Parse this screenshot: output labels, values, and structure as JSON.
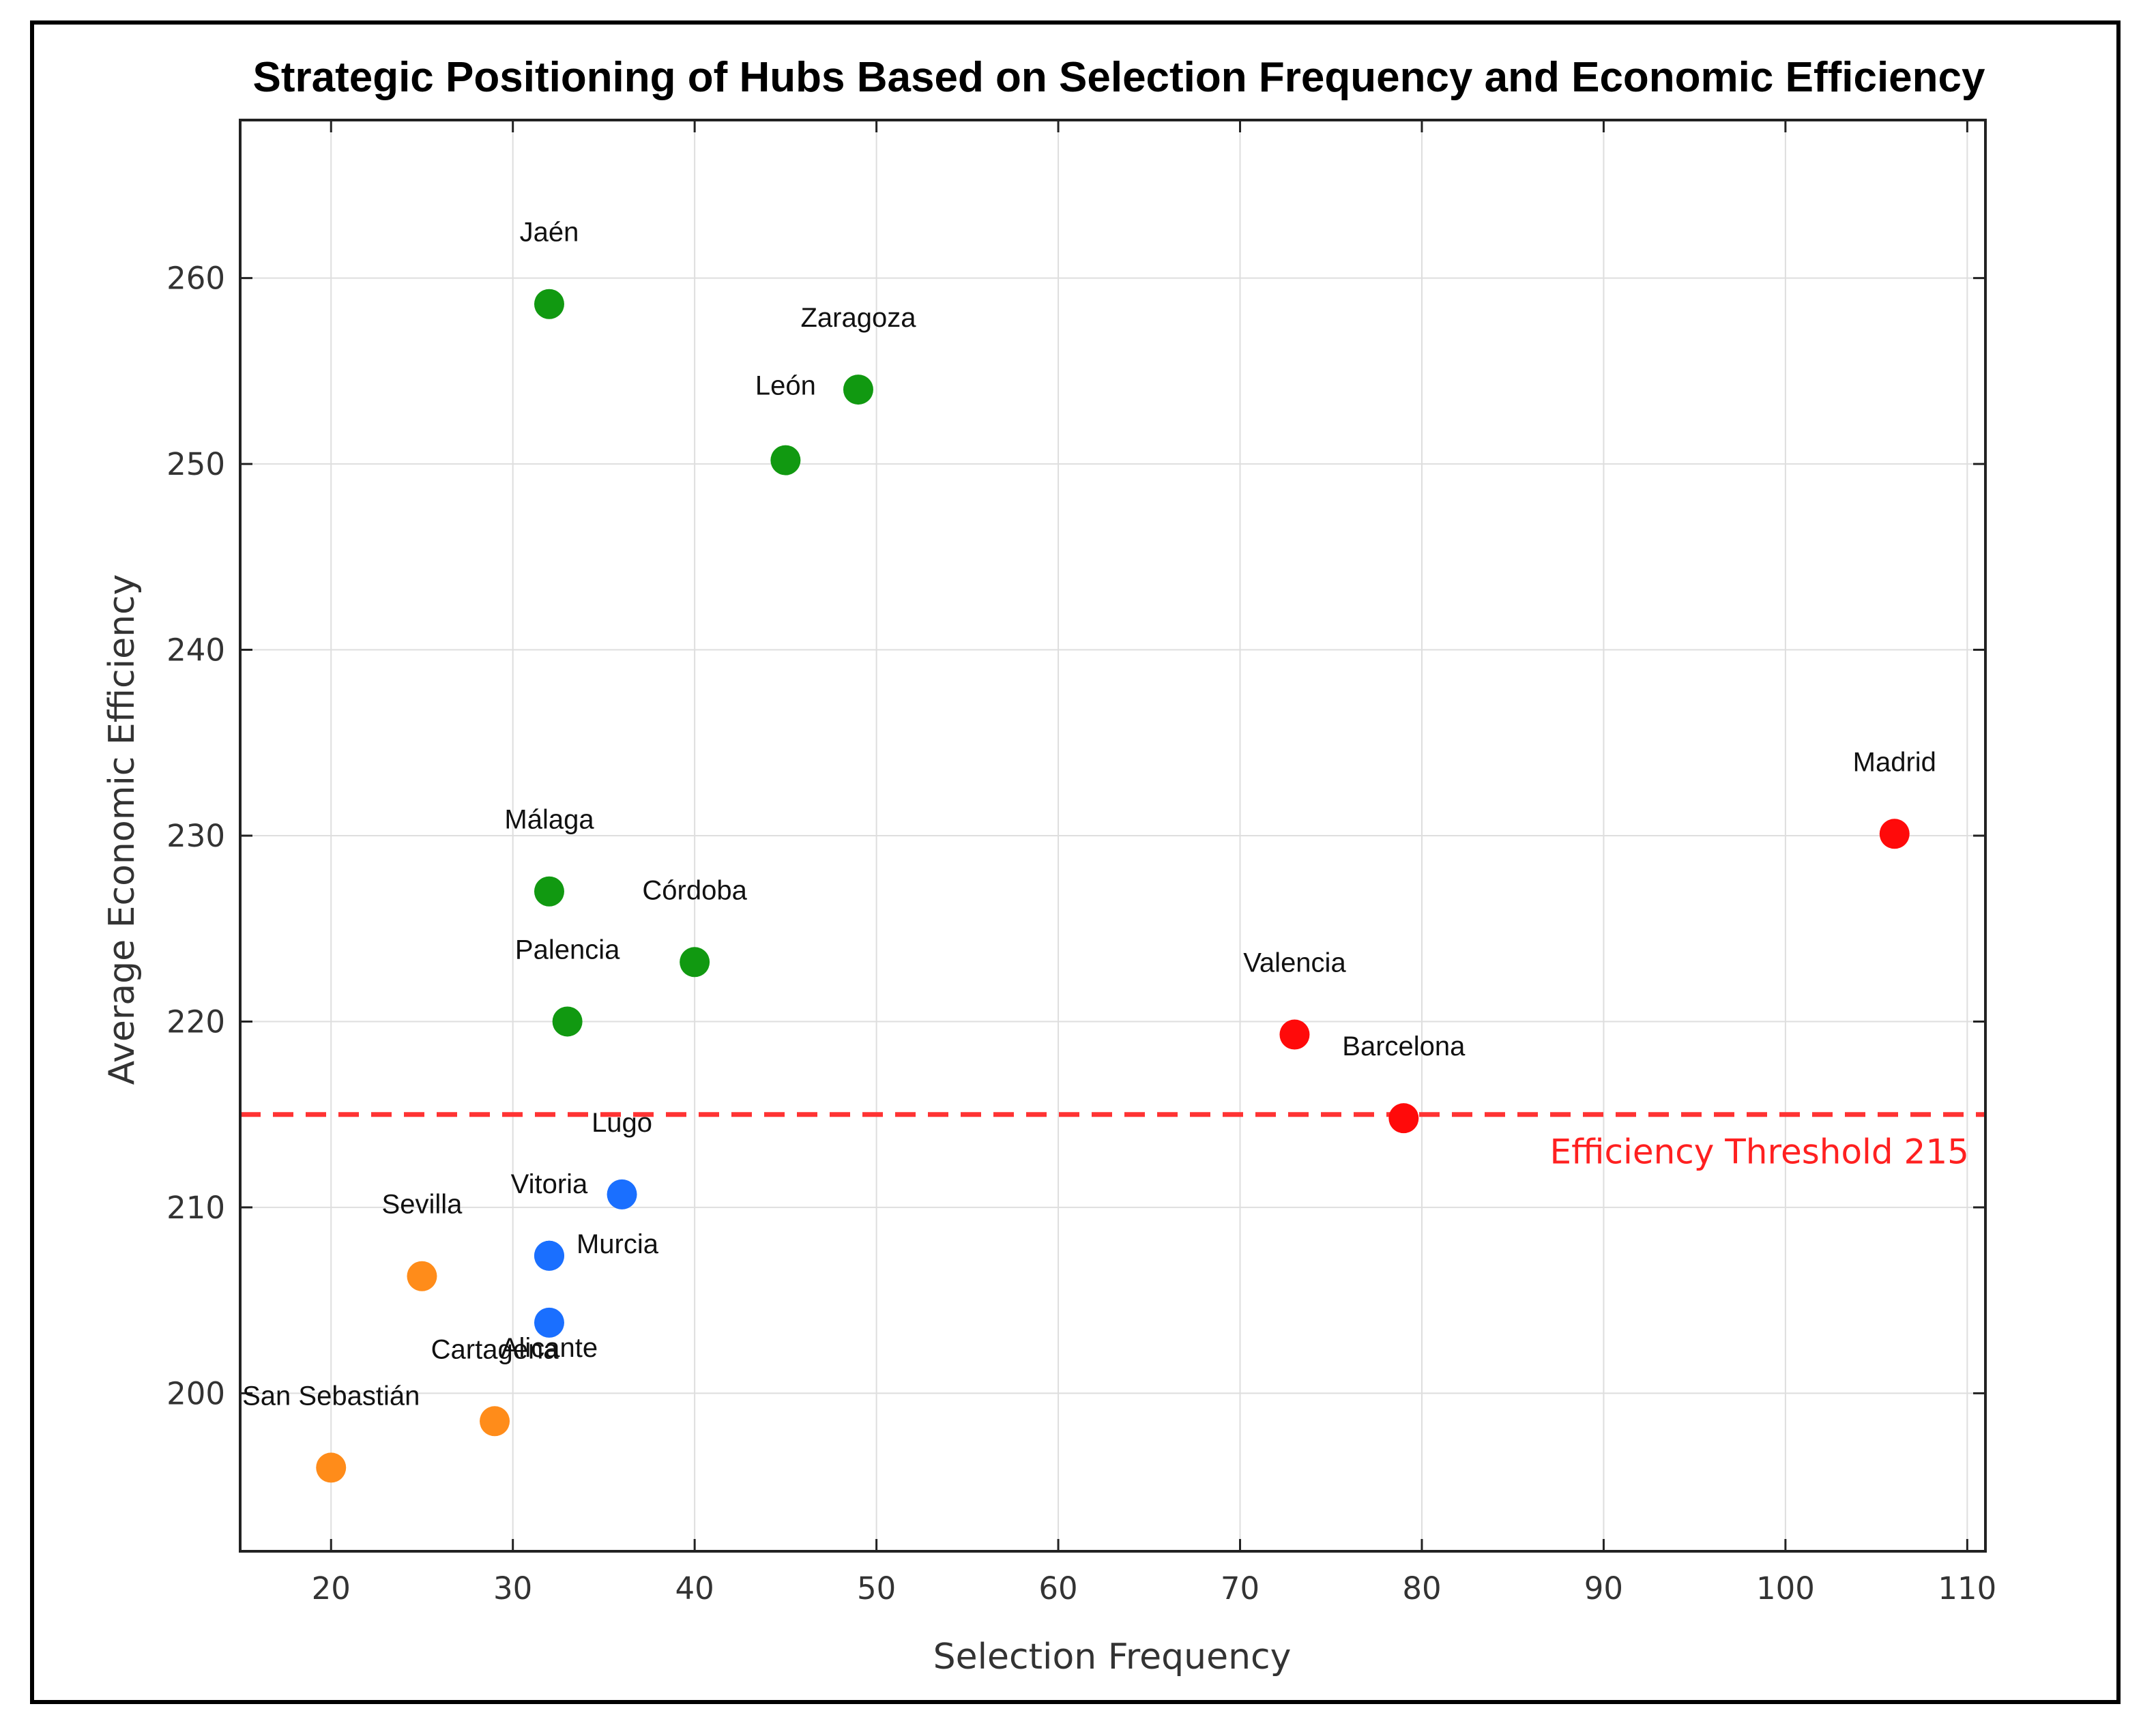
{
  "chart_data": {
    "type": "scatter",
    "title": "Strategic Positioning of Hubs Based on Selection Frequency and Economic Efficiency",
    "xlabel": "Selection Frequency",
    "ylabel": "Average Economic Efficiency",
    "xlim": [
      15,
      111
    ],
    "ylim": [
      191.5,
      268.5
    ],
    "xticks": [
      20,
      30,
      40,
      50,
      60,
      70,
      80,
      90,
      100,
      110
    ],
    "yticks": [
      200,
      210,
      220,
      230,
      240,
      250,
      260
    ],
    "grid": true,
    "threshold": {
      "value": 215,
      "label": "Efficiency Threshold 215",
      "color": "#ff3333"
    },
    "colors": {
      "green": "#119911",
      "blue": "#1a6fff",
      "orange": "#ff8c1a",
      "red": "#ff0a0a"
    },
    "points": [
      {
        "name": "Jaén",
        "x": 32,
        "y": 258.6,
        "group": "green",
        "label_pos": "above"
      },
      {
        "name": "Zaragoza",
        "x": 49,
        "y": 254,
        "group": "green",
        "label_pos": "above"
      },
      {
        "name": "León",
        "x": 45,
        "y": 250.2,
        "group": "green",
        "label_pos": "above"
      },
      {
        "name": "Málaga",
        "x": 32,
        "y": 227,
        "group": "green",
        "label_pos": "above"
      },
      {
        "name": "Córdoba",
        "x": 40,
        "y": 223.2,
        "group": "green",
        "label_pos": "above"
      },
      {
        "name": "Palencia",
        "x": 33,
        "y": 220,
        "group": "green",
        "label_pos": "above"
      },
      {
        "name": "Madrid",
        "x": 106,
        "y": 230.1,
        "group": "red",
        "label_pos": "above"
      },
      {
        "name": "Valencia",
        "x": 73,
        "y": 219.3,
        "group": "red",
        "label_pos": "above"
      },
      {
        "name": "Barcelona",
        "x": 79,
        "y": 214.8,
        "group": "red",
        "label_pos": "above"
      },
      {
        "name": "Lugo",
        "x": 36,
        "y": 210.7,
        "group": "blue",
        "label_pos": "above"
      },
      {
        "name": "Vitoria",
        "x": 32,
        "y": 207.4,
        "group": "blue",
        "label_pos": "above"
      },
      {
        "name": "Murcia",
        "x": 32,
        "y": 207.4,
        "group": "blue",
        "label_pos": "right"
      },
      {
        "name": "Alicante",
        "x": 32,
        "y": 203.8,
        "group": "blue",
        "label_pos": "below"
      },
      {
        "name": "Sevilla",
        "x": 25,
        "y": 206.3,
        "group": "orange",
        "label_pos": "above"
      },
      {
        "name": "Cartagena",
        "x": 29,
        "y": 198.5,
        "group": "orange",
        "label_pos": "above"
      },
      {
        "name": "San Sebastián",
        "x": 20,
        "y": 196,
        "group": "orange",
        "label_pos": "above"
      }
    ]
  }
}
